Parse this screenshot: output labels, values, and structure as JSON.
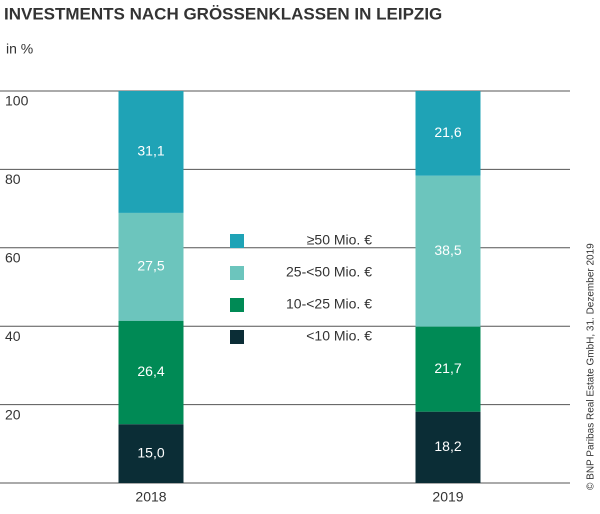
{
  "chart_data": {
    "type": "stacked-bar",
    "title": "INVESTMENTS NACH GRÖSSENKLASSEN IN LEIPZIG",
    "y_label": "in %",
    "source": "© BNP Paribas Real Estate GmbH, 31. Dezember 2019",
    "categories": [
      "2018",
      "2019"
    ],
    "series": [
      {
        "name": "<10 Mio. €",
        "color": "#0b2d36",
        "values": [
          15.0,
          18.2
        ],
        "value_labels": [
          "15,0",
          "18,2"
        ]
      },
      {
        "name": "10-<25 Mio. €",
        "color": "#008a55",
        "values": [
          26.4,
          21.7
        ],
        "value_labels": [
          "26,4",
          "21,7"
        ]
      },
      {
        "name": "25-<50 Mio. €",
        "color": "#6cc5bd",
        "values": [
          27.5,
          38.5
        ],
        "value_labels": [
          "27,5",
          "38,5"
        ]
      },
      {
        "name": "≥50 Mio. €",
        "color": "#1fa3b6",
        "values": [
          31.1,
          21.6
        ],
        "value_labels": [
          "31,1",
          "21,6"
        ]
      }
    ],
    "ylim": [
      0,
      100
    ],
    "yticks": [
      20,
      40,
      60,
      80,
      100
    ],
    "grid": true
  }
}
